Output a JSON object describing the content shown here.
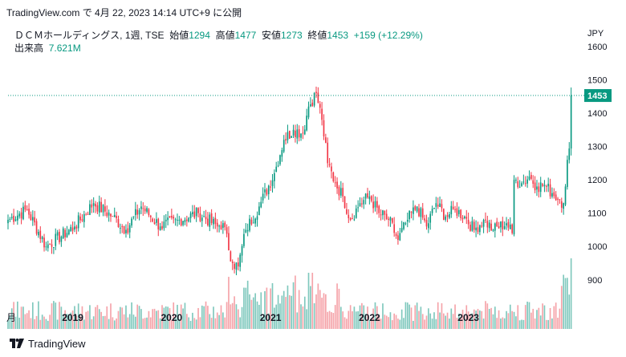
{
  "header": {
    "published": "TradingView.com で 4月 22, 2023 14:14 UTC+9 に公開"
  },
  "legend": {
    "symbol": "ＤＣＭホールディングス, 1週, TSE",
    "open_label": "始値",
    "open": "1294",
    "high_label": "高値",
    "high": "1477",
    "low_label": "安値",
    "low": "1273",
    "close_label": "終値",
    "close": "1453",
    "change": "+159 (+12.29%)",
    "volume_label": "出来高",
    "volume": "7.621M"
  },
  "currency": "JPY",
  "footer": {
    "brand": "TradingView"
  },
  "colors": {
    "up": "#089981",
    "down": "#f23645",
    "up_vol": "#7fc8bd",
    "down_vol": "#f5a3a9",
    "last": "#089981"
  },
  "chart_data": {
    "type": "candlestick",
    "x_range": [
      "2018-05",
      "2023-04"
    ],
    "x_ticks": [
      "月",
      "2019",
      "2020",
      "2021",
      "2022",
      "2023"
    ],
    "y_ticks": [
      900,
      1000,
      1100,
      1200,
      1300,
      1400,
      1500,
      1600
    ],
    "y_range": [
      820,
      1600
    ],
    "last_price": 1453,
    "anchors": [
      [
        0,
        1080
      ],
      [
        10,
        1110
      ],
      [
        20,
        1000
      ],
      [
        35,
        1060
      ],
      [
        45,
        1130
      ],
      [
        55,
        1090
      ],
      [
        62,
        1050
      ],
      [
        70,
        1120
      ],
      [
        80,
        1060
      ],
      [
        90,
        1080
      ],
      [
        100,
        1100
      ],
      [
        110,
        1060
      ],
      [
        113,
        1070
      ],
      [
        118,
        950
      ],
      [
        121,
        940
      ],
      [
        125,
        1050
      ],
      [
        132,
        1120
      ],
      [
        140,
        1220
      ],
      [
        145,
        1320
      ],
      [
        150,
        1350
      ],
      [
        155,
        1340
      ],
      [
        158,
        1420
      ],
      [
        162,
        1460
      ],
      [
        165,
        1380
      ],
      [
        168,
        1250
      ],
      [
        172,
        1190
      ],
      [
        176,
        1150
      ],
      [
        180,
        1080
      ],
      [
        185,
        1130
      ],
      [
        190,
        1150
      ],
      [
        195,
        1100
      ],
      [
        200,
        1080
      ],
      [
        205,
        1020
      ],
      [
        210,
        1080
      ],
      [
        215,
        1120
      ],
      [
        220,
        1060
      ],
      [
        225,
        1130
      ],
      [
        230,
        1090
      ],
      [
        235,
        1110
      ],
      [
        240,
        1090
      ],
      [
        245,
        1050
      ],
      [
        250,
        1080
      ],
      [
        255,
        1050
      ],
      [
        262,
        1070
      ],
      [
        265,
        1040
      ],
      [
        266,
        1200
      ],
      [
        270,
        1190
      ],
      [
        274,
        1210
      ],
      [
        278,
        1180
      ],
      [
        282,
        1185
      ],
      [
        286,
        1160
      ],
      [
        290,
        1140
      ],
      [
        292,
        1130
      ],
      [
        294,
        1260
      ],
      [
        295,
        1294
      ],
      [
        296,
        1453
      ]
    ]
  }
}
